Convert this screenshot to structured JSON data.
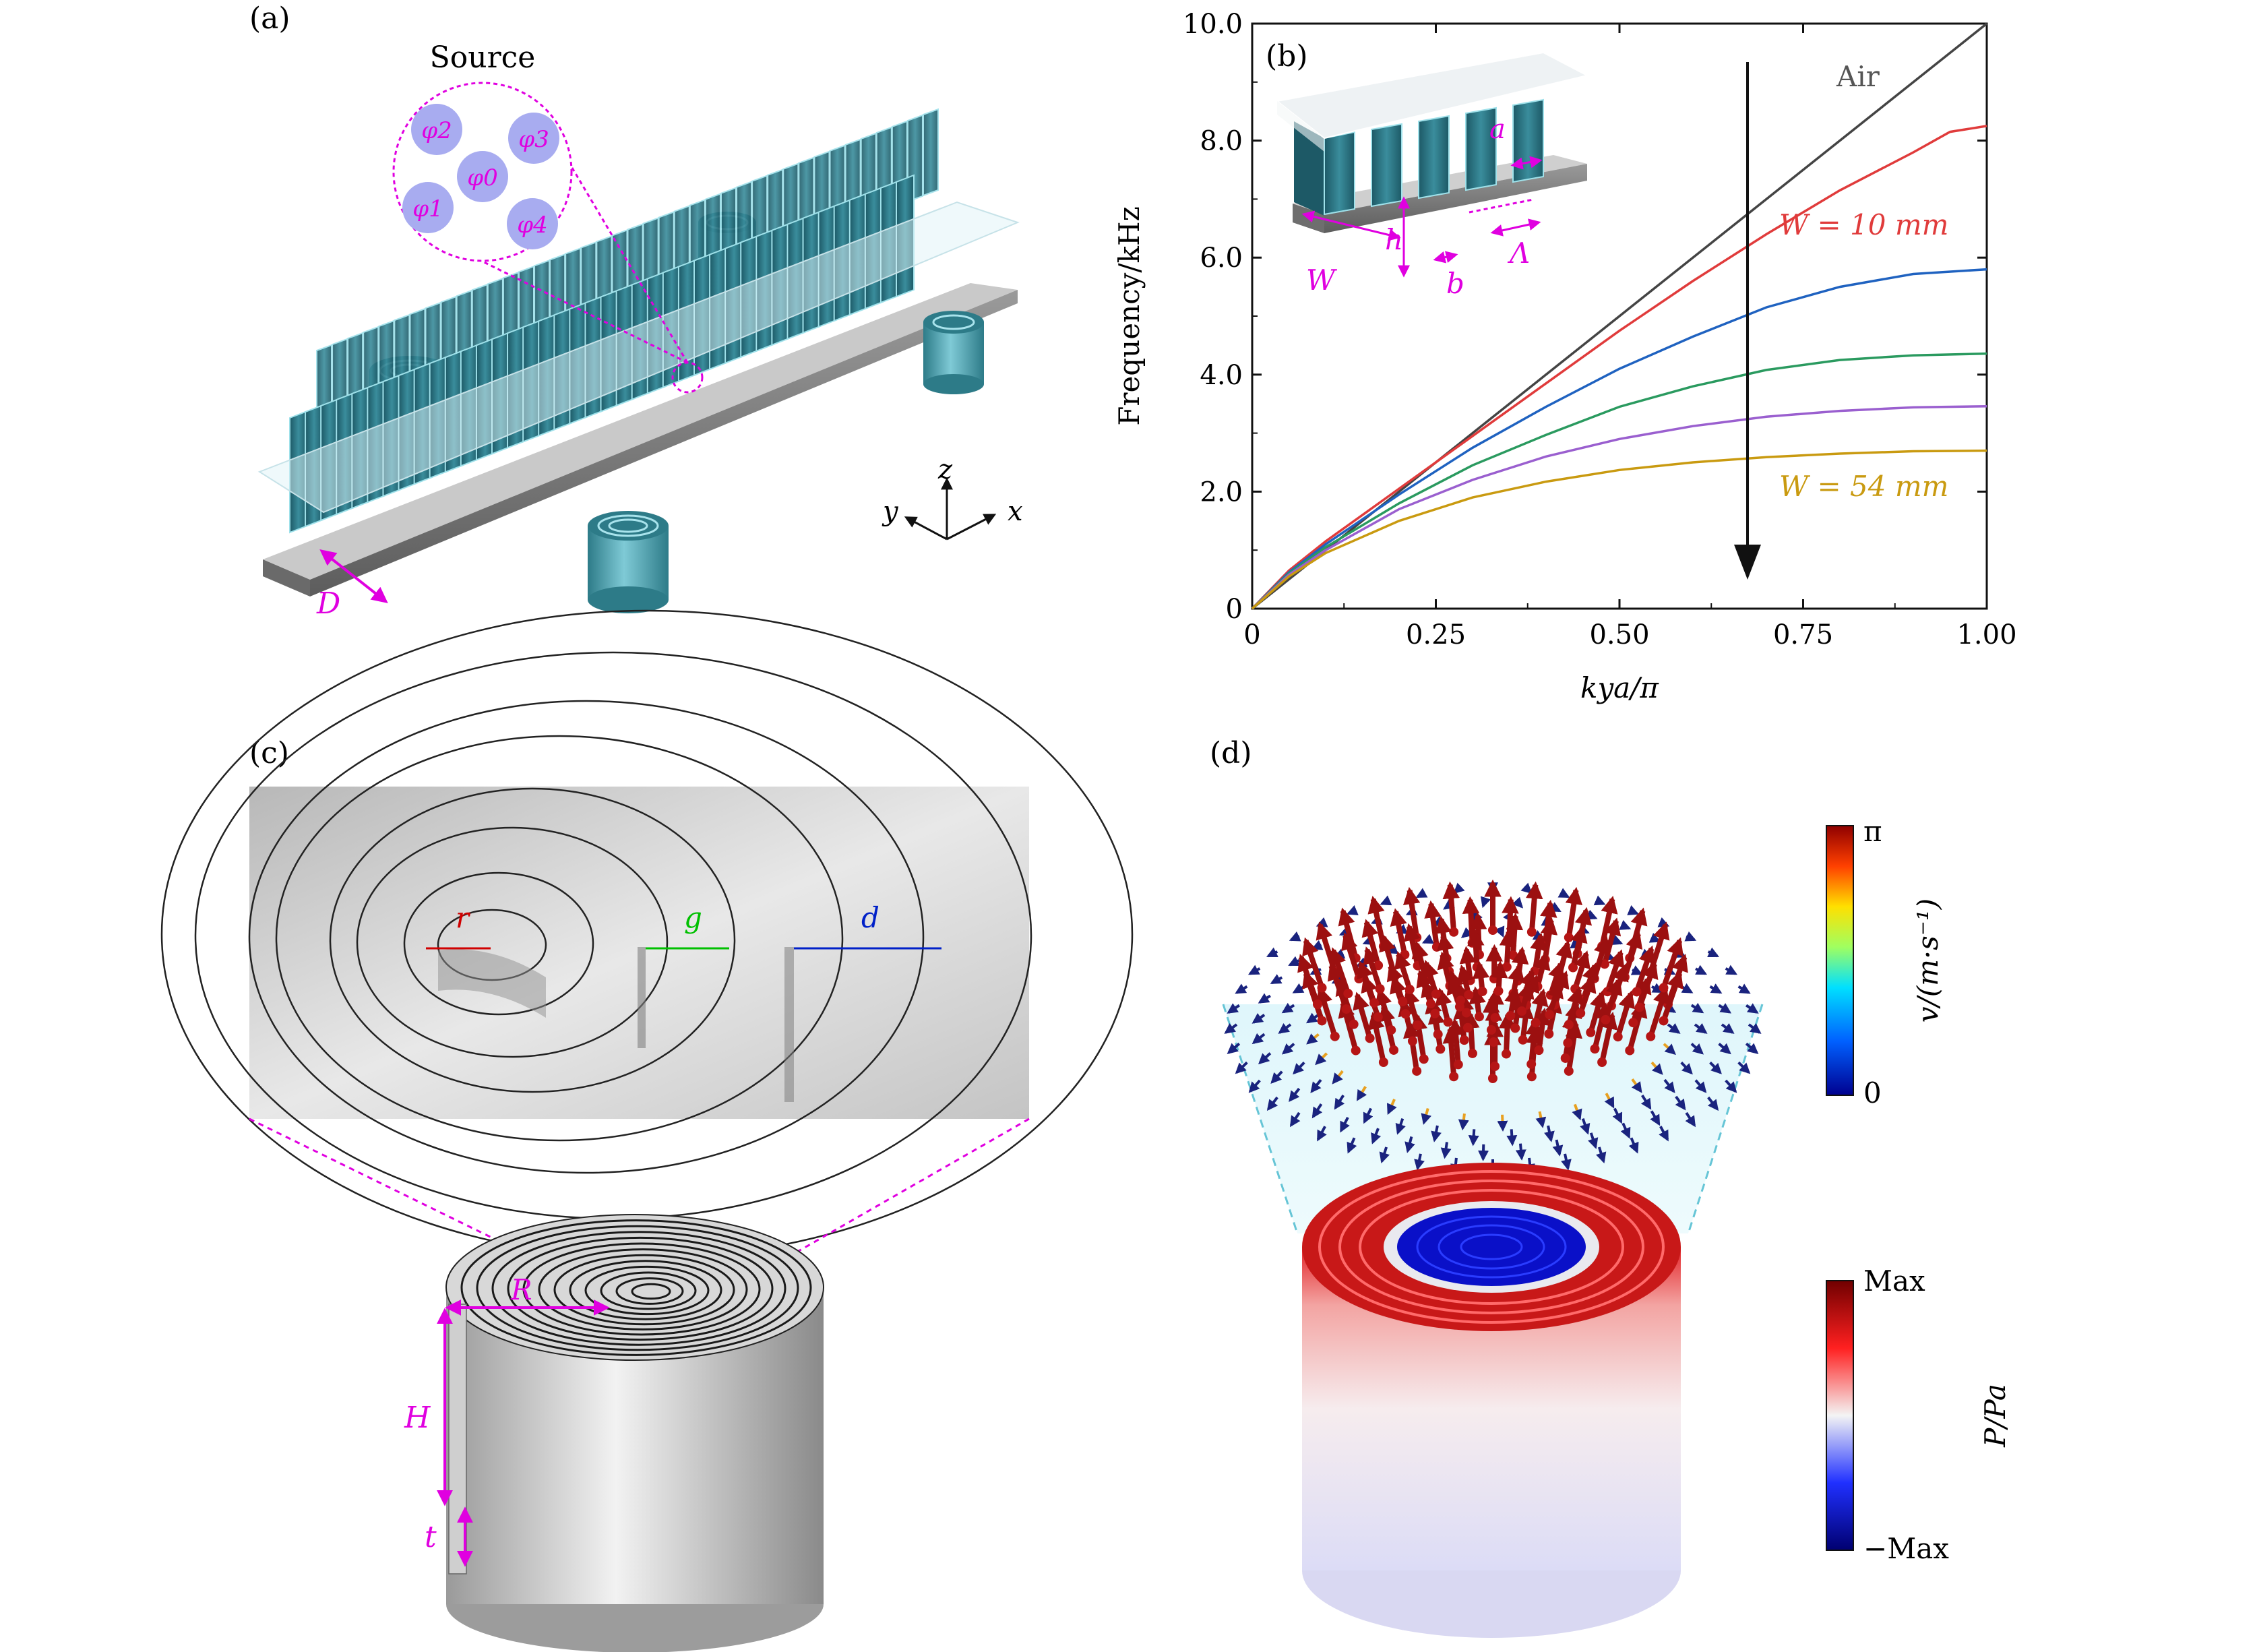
{
  "panels": {
    "a": {
      "label": "(a)",
      "source_title": "Source",
      "sources": [
        "φ2",
        "φ3",
        "φ0",
        "φ1",
        "φ4"
      ],
      "dim_D": "D",
      "axes": {
        "x": "x",
        "y": "y",
        "z": "z"
      }
    },
    "b": {
      "label": "(b)",
      "inset": {
        "h": "h",
        "a": "a",
        "W": "W",
        "b": "b",
        "Lambda": "Λ"
      },
      "annotations": {
        "air": "Air",
        "w_top": "W = 10 mm",
        "w_bottom": "W = 54 mm"
      }
    },
    "c": {
      "label": "(c)",
      "zoom_labels": {
        "r": "r",
        "g": "g",
        "d": "d"
      },
      "cyl_labels": {
        "R": "R",
        "H": "H",
        "t": "t"
      }
    },
    "d": {
      "label": "(d)",
      "velocity_bar": {
        "title": "v/(m·s⁻¹)",
        "max": "π",
        "min": "0"
      },
      "pressure_bar": {
        "title": "P/Pa",
        "max": "Max",
        "min": "−Max"
      }
    }
  },
  "chart_data": {
    "type": "line",
    "xlabel": "kya/π",
    "ylabel": "Frequency/kHz",
    "xlim": [
      0,
      1.0
    ],
    "ylim": [
      0,
      10.0
    ],
    "x_ticks": [
      "0",
      "0.25",
      "0.50",
      "0.75",
      "1.00"
    ],
    "y_ticks": [
      "0",
      "2.0",
      "4.0",
      "6.0",
      "8.0",
      "10.0"
    ],
    "series": [
      {
        "name": "Air",
        "color": "#444444",
        "x": [
          0,
          1.0
        ],
        "y": [
          0,
          10.0
        ]
      },
      {
        "name": "W = 10 mm",
        "color": "#e03b3b",
        "x": [
          0,
          0.05,
          0.1,
          0.2,
          0.3,
          0.4,
          0.5,
          0.6,
          0.7,
          0.8,
          0.9,
          0.95,
          1.0
        ],
        "y": [
          0,
          0.65,
          1.15,
          2.05,
          2.95,
          3.85,
          4.75,
          5.6,
          6.4,
          7.15,
          7.8,
          8.15,
          8.25
        ]
      },
      {
        "name": "",
        "color": "#1f62c0",
        "x": [
          0,
          0.05,
          0.1,
          0.2,
          0.3,
          0.4,
          0.5,
          0.6,
          0.7,
          0.8,
          0.9,
          1.0
        ],
        "y": [
          0,
          0.62,
          1.1,
          1.95,
          2.75,
          3.45,
          4.1,
          4.65,
          5.15,
          5.5,
          5.72,
          5.8
        ]
      },
      {
        "name": "",
        "color": "#2a9a5f",
        "x": [
          0,
          0.05,
          0.1,
          0.2,
          0.3,
          0.4,
          0.5,
          0.6,
          0.7,
          0.8,
          0.9,
          1.0
        ],
        "y": [
          0,
          0.6,
          1.05,
          1.8,
          2.45,
          2.97,
          3.45,
          3.8,
          4.08,
          4.25,
          4.33,
          4.36
        ]
      },
      {
        "name": "",
        "color": "#9a5fcf",
        "x": [
          0,
          0.05,
          0.1,
          0.2,
          0.3,
          0.4,
          0.5,
          0.6,
          0.7,
          0.8,
          0.9,
          1.0
        ],
        "y": [
          0,
          0.58,
          1.0,
          1.7,
          2.2,
          2.6,
          2.9,
          3.12,
          3.28,
          3.38,
          3.44,
          3.46
        ]
      },
      {
        "name": "W = 54 mm",
        "color": "#c99a10",
        "x": [
          0,
          0.05,
          0.1,
          0.2,
          0.3,
          0.4,
          0.5,
          0.6,
          0.7,
          0.8,
          0.9,
          1.0
        ],
        "y": [
          0,
          0.55,
          0.95,
          1.5,
          1.9,
          2.17,
          2.37,
          2.5,
          2.59,
          2.65,
          2.69,
          2.7
        ]
      }
    ]
  }
}
